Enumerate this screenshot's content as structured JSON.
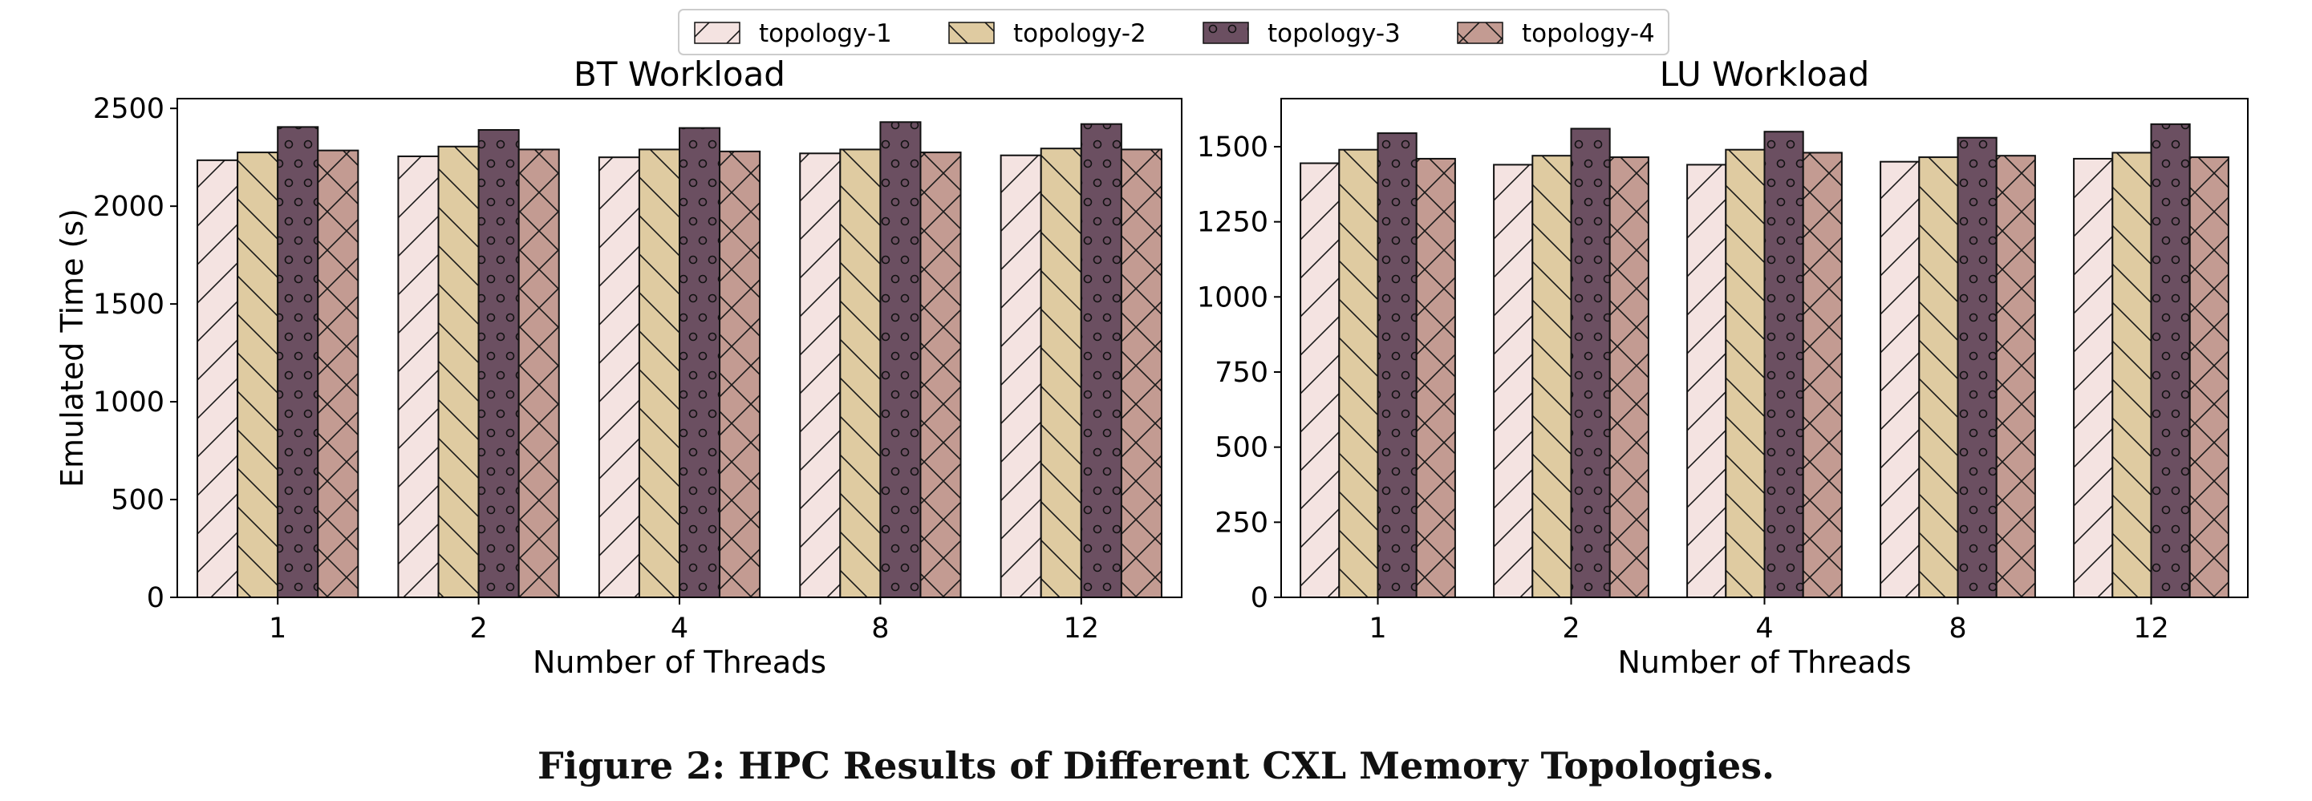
{
  "legend": {
    "placement": "top-center",
    "entries": [
      {
        "name": "topology-1",
        "color": "#f4e3e1",
        "pattern": "forward-diagonal"
      },
      {
        "name": "topology-2",
        "color": "#dfcba1",
        "pattern": "back-diagonal"
      },
      {
        "name": "topology-3",
        "color": "#6b4f61",
        "pattern": "circles"
      },
      {
        "name": "topology-4",
        "color": "#c39b92",
        "pattern": "cross-hatch"
      }
    ]
  },
  "chart_data": [
    {
      "type": "bar",
      "title": "BT Workload",
      "xlabel": "Number of Threads",
      "ylabel": "Emulated Time (s)",
      "categories": [
        "1",
        "2",
        "4",
        "8",
        "12"
      ],
      "ylim": [
        0,
        2550
      ],
      "yticks": [
        "0",
        "500",
        "1000",
        "1500",
        "2000",
        "2500"
      ],
      "ytick_values": [
        0,
        500,
        1000,
        1500,
        2000,
        2500
      ],
      "grid": false,
      "series": [
        {
          "name": "topology-1",
          "values": [
            2235,
            2255,
            2250,
            2270,
            2260
          ]
        },
        {
          "name": "topology-2",
          "values": [
            2275,
            2305,
            2290,
            2290,
            2295
          ]
        },
        {
          "name": "topology-3",
          "values": [
            2405,
            2390,
            2400,
            2430,
            2420
          ]
        },
        {
          "name": "topology-4",
          "values": [
            2285,
            2290,
            2280,
            2275,
            2290
          ]
        }
      ]
    },
    {
      "type": "bar",
      "title": "LU Workload",
      "xlabel": "Number of Threads",
      "ylabel": "",
      "categories": [
        "1",
        "2",
        "4",
        "8",
        "12"
      ],
      "ylim": [
        0,
        1660
      ],
      "yticks": [
        "0",
        "250",
        "500",
        "750",
        "1000",
        "1250",
        "1500"
      ],
      "ytick_values": [
        0,
        250,
        500,
        750,
        1000,
        1250,
        1500
      ],
      "grid": false,
      "series": [
        {
          "name": "topology-1",
          "values": [
            1445,
            1440,
            1440,
            1450,
            1460
          ]
        },
        {
          "name": "topology-2",
          "values": [
            1490,
            1470,
            1490,
            1465,
            1480
          ]
        },
        {
          "name": "topology-3",
          "values": [
            1545,
            1560,
            1550,
            1530,
            1575
          ]
        },
        {
          "name": "topology-4",
          "values": [
            1460,
            1465,
            1480,
            1470,
            1465
          ]
        }
      ]
    }
  ],
  "caption": "Figure 2: HPC Results of Different CXL Memory Topologies."
}
